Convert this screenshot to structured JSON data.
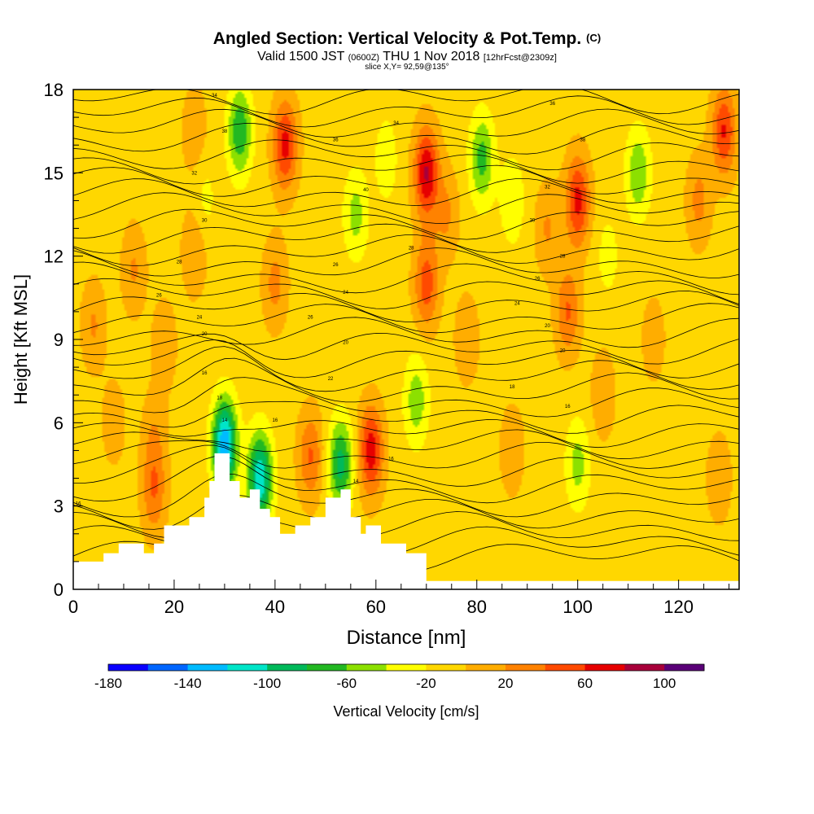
{
  "header": {
    "title": "Angled Section: Vertical Velocity & Pot.Temp.",
    "title_unit": "(C)",
    "subtitle_main": "Valid 1500 JST",
    "subtitle_z": "(0600Z)",
    "subtitle_date": "THU 1 Nov 2018",
    "subtitle_fcst": "[12hrFcst@2309z]",
    "slice": "slice X,Y= 92,59@135°"
  },
  "chart_data": {
    "type": "heatmap",
    "xlabel": "Distance [nm]",
    "ylabel": "Height [Kft MSL]",
    "xlim": [
      0,
      132
    ],
    "ylim": [
      0,
      18
    ],
    "x_ticks": [
      0,
      20,
      40,
      60,
      80,
      100,
      120
    ],
    "y_ticks": [
      0,
      3,
      6,
      9,
      12,
      15,
      18
    ],
    "colorbar": {
      "label": "Vertical Velocity [cm/s]",
      "min": -180,
      "max": 120,
      "step": 20,
      "tick_labels": [
        -180,
        -140,
        -100,
        -60,
        -20,
        20,
        60,
        100
      ],
      "colors": [
        "#0a00ff",
        "#0066ff",
        "#00bbff",
        "#00e5c8",
        "#00b95a",
        "#22b822",
        "#8ce000",
        "#ffff00",
        "#ffd700",
        "#ffad00",
        "#ff8200",
        "#ff4a00",
        "#e60000",
        "#a8003a",
        "#5a0078"
      ]
    },
    "background_level_color": "#ffd700",
    "velocity_features": [
      {
        "x": 4,
        "z": 9.5,
        "value": 30
      },
      {
        "x": 12,
        "z": 11.5,
        "value": 30
      },
      {
        "x": 16,
        "z": 3.5,
        "value": 45
      },
      {
        "x": 16,
        "z": 5.5,
        "value": 25
      },
      {
        "x": 18,
        "z": 8.8,
        "value": 25
      },
      {
        "x": 24,
        "z": 12.2,
        "value": 30
      },
      {
        "x": 24,
        "z": 16.5,
        "value": 25
      },
      {
        "x": 26,
        "z": 14.0,
        "value": -20
      },
      {
        "x": 33,
        "z": 16.5,
        "value": -70
      },
      {
        "x": 42,
        "z": 16.0,
        "value": 75
      },
      {
        "x": 40,
        "z": 11.0,
        "value": 35
      },
      {
        "x": 30,
        "z": 5.2,
        "value": -130
      },
      {
        "x": 37,
        "z": 4.0,
        "value": -110
      },
      {
        "x": 47,
        "z": 4.8,
        "value": 50
      },
      {
        "x": 53,
        "z": 4.5,
        "value": -80
      },
      {
        "x": 59,
        "z": 5.0,
        "value": 80
      },
      {
        "x": 56,
        "z": 13.5,
        "value": -40
      },
      {
        "x": 62,
        "z": 15.5,
        "value": -25
      },
      {
        "x": 70,
        "z": 15.0,
        "value": 90
      },
      {
        "x": 70,
        "z": 11.0,
        "value": 60
      },
      {
        "x": 74,
        "z": 13.5,
        "value": 30
      },
      {
        "x": 81,
        "z": 15.5,
        "value": -60
      },
      {
        "x": 87,
        "z": 14.0,
        "value": -30
      },
      {
        "x": 78,
        "z": 9.0,
        "value": 25
      },
      {
        "x": 87,
        "z": 5.0,
        "value": 25
      },
      {
        "x": 94,
        "z": 13.0,
        "value": 30
      },
      {
        "x": 100,
        "z": 14.0,
        "value": 75
      },
      {
        "x": 98,
        "z": 10.0,
        "value": 50
      },
      {
        "x": 105,
        "z": 7.0,
        "value": 25
      },
      {
        "x": 112,
        "z": 15.0,
        "value": -50
      },
      {
        "x": 106,
        "z": 12.0,
        "value": -20
      },
      {
        "x": 124,
        "z": 14.0,
        "value": 35
      },
      {
        "x": 129,
        "z": 16.5,
        "value": 70
      },
      {
        "x": 128,
        "z": 4.0,
        "value": 25
      },
      {
        "x": 92,
        "z": 3.0,
        "value": -5
      },
      {
        "x": 75,
        "z": 3.0,
        "value": -5
      },
      {
        "x": 115,
        "z": 9.0,
        "value": 20
      },
      {
        "x": 8,
        "z": 6.0,
        "value": 20
      },
      {
        "x": 68,
        "z": 6.8,
        "value": -45
      },
      {
        "x": 100,
        "z": 4.5,
        "value": -40
      }
    ],
    "terrain": [
      {
        "x": 0,
        "z": 1.0
      },
      {
        "x": 5,
        "z": 1.0
      },
      {
        "x": 6,
        "z": 1.3
      },
      {
        "x": 9,
        "z": 1.65
      },
      {
        "x": 13,
        "z": 1.65
      },
      {
        "x": 14,
        "z": 1.3
      },
      {
        "x": 16,
        "z": 1.65
      },
      {
        "x": 18,
        "z": 2.3
      },
      {
        "x": 22,
        "z": 2.3
      },
      {
        "x": 23,
        "z": 2.6
      },
      {
        "x": 26,
        "z": 3.3
      },
      {
        "x": 27,
        "z": 3.9
      },
      {
        "x": 28,
        "z": 4.9
      },
      {
        "x": 30,
        "z": 4.9
      },
      {
        "x": 31,
        "z": 3.9
      },
      {
        "x": 33,
        "z": 3.3
      },
      {
        "x": 35,
        "z": 3.6
      },
      {
        "x": 37,
        "z": 2.9
      },
      {
        "x": 39,
        "z": 2.6
      },
      {
        "x": 41,
        "z": 2.0
      },
      {
        "x": 44,
        "z": 2.3
      },
      {
        "x": 47,
        "z": 2.6
      },
      {
        "x": 50,
        "z": 3.3
      },
      {
        "x": 53,
        "z": 3.6
      },
      {
        "x": 55,
        "z": 2.6
      },
      {
        "x": 57,
        "z": 2.0
      },
      {
        "x": 58,
        "z": 2.3
      },
      {
        "x": 60,
        "z": 2.3
      },
      {
        "x": 61,
        "z": 1.65
      },
      {
        "x": 66,
        "z": 1.3
      },
      {
        "x": 70,
        "z": 0.3
      },
      {
        "x": 132,
        "z": 0.3
      }
    ],
    "contour_labels": [
      {
        "x": 28,
        "z": 17.8,
        "text": "34"
      },
      {
        "x": 30,
        "z": 16.5,
        "text": "38"
      },
      {
        "x": 24,
        "z": 15.0,
        "text": "32"
      },
      {
        "x": 26,
        "z": 13.3,
        "text": "30"
      },
      {
        "x": 21,
        "z": 11.8,
        "text": "28"
      },
      {
        "x": 17,
        "z": 10.6,
        "text": "26"
      },
      {
        "x": 25,
        "z": 9.8,
        "text": "24"
      },
      {
        "x": 26,
        "z": 9.2,
        "text": "20"
      },
      {
        "x": 26,
        "z": 7.8,
        "text": "16"
      },
      {
        "x": 29,
        "z": 6.9,
        "text": "18"
      },
      {
        "x": 30,
        "z": 6.1,
        "text": "14"
      },
      {
        "x": 40,
        "z": 6.1,
        "text": "16"
      },
      {
        "x": 56,
        "z": 3.9,
        "text": "14"
      },
      {
        "x": 63,
        "z": 4.7,
        "text": "16"
      },
      {
        "x": 1,
        "z": 3.1,
        "text": "16"
      },
      {
        "x": 52,
        "z": 16.2,
        "text": "36"
      },
      {
        "x": 58,
        "z": 14.4,
        "text": "40"
      },
      {
        "x": 64,
        "z": 16.8,
        "text": "34"
      },
      {
        "x": 67,
        "z": 12.3,
        "text": "28"
      },
      {
        "x": 52,
        "z": 11.7,
        "text": "26"
      },
      {
        "x": 54,
        "z": 10.7,
        "text": "24"
      },
      {
        "x": 47,
        "z": 9.8,
        "text": "26"
      },
      {
        "x": 54,
        "z": 8.9,
        "text": "20"
      },
      {
        "x": 51,
        "z": 7.6,
        "text": "22"
      },
      {
        "x": 95,
        "z": 17.5,
        "text": "36"
      },
      {
        "x": 101,
        "z": 16.2,
        "text": "38"
      },
      {
        "x": 94,
        "z": 14.5,
        "text": "32"
      },
      {
        "x": 91,
        "z": 13.3,
        "text": "30"
      },
      {
        "x": 97,
        "z": 12.0,
        "text": "28"
      },
      {
        "x": 92,
        "z": 11.2,
        "text": "26"
      },
      {
        "x": 88,
        "z": 10.3,
        "text": "24"
      },
      {
        "x": 94,
        "z": 9.5,
        "text": "20"
      },
      {
        "x": 97,
        "z": 8.6,
        "text": "20"
      },
      {
        "x": 87,
        "z": 7.3,
        "text": "18"
      },
      {
        "x": 98,
        "z": 6.6,
        "text": "16"
      }
    ]
  }
}
